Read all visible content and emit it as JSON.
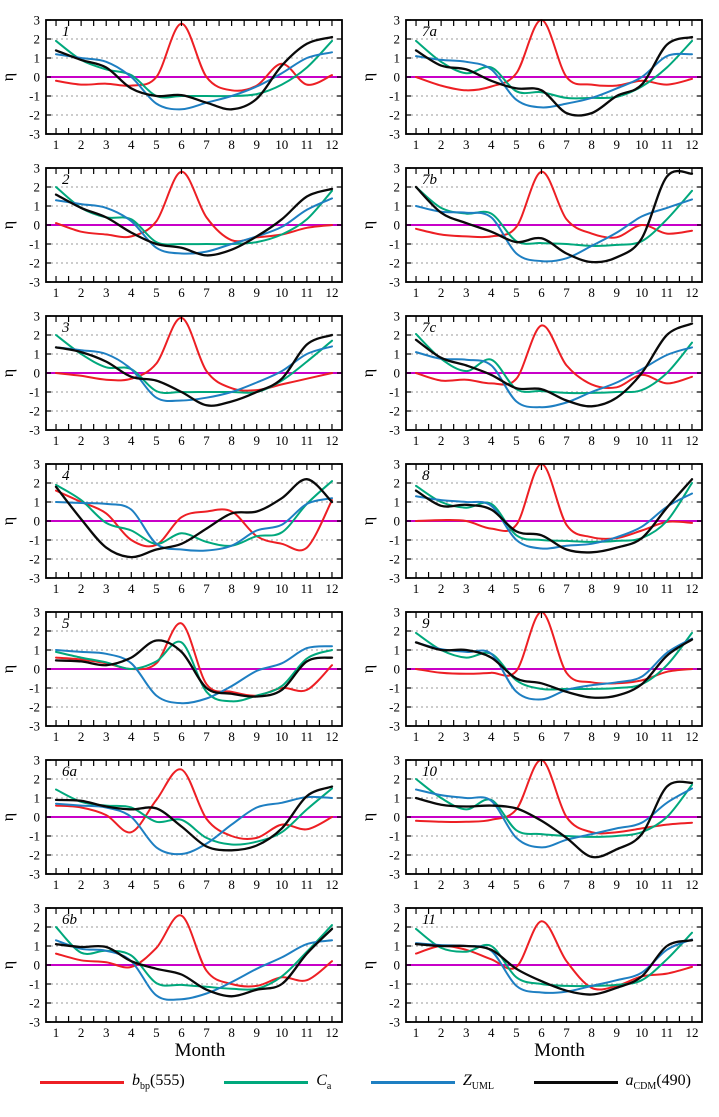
{
  "figure": {
    "ylabel": "η",
    "xlabel": "Month",
    "ylim": [
      -3,
      3
    ],
    "xlim": [
      0.6,
      12.4
    ],
    "yticks": [
      3,
      2,
      1,
      0,
      -1,
      -2,
      -3
    ],
    "xticks": [
      1,
      2,
      3,
      4,
      5,
      6,
      7,
      8,
      9,
      10,
      11,
      12
    ],
    "grid_dotted_y": [
      2,
      1,
      -1,
      -2
    ],
    "zero_line_y": 0,
    "grid_on": true,
    "colors": {
      "bbp": "#ed1f24",
      "ca": "#00a87c",
      "zuml": "#1e7fc2",
      "acdm": "#0a0a0a",
      "zero_line": "#c800c8",
      "grid": "#9a9a9a",
      "frame": "#000000"
    }
  },
  "legend": [
    {
      "key": "bbp",
      "pre": "b",
      "sub": "bp",
      "post": "(555)"
    },
    {
      "key": "ca",
      "pre": "C",
      "sub": "a",
      "post": ""
    },
    {
      "key": "zuml",
      "pre": "Z",
      "sub": "UML",
      "post": ""
    },
    {
      "key": "acdm",
      "pre": "a",
      "sub": "CDM",
      "post": "(490)"
    }
  ],
  "chart_data": {
    "type": "line",
    "x": [
      1,
      2,
      3,
      4,
      5,
      6,
      7,
      8,
      9,
      10,
      11,
      12
    ],
    "series_keys": [
      "bbp",
      "ca",
      "zuml",
      "acdm"
    ],
    "panels": [
      {
        "label": "1",
        "series": {
          "bbp": [
            -0.2,
            -0.4,
            -0.35,
            -0.45,
            0.0,
            2.8,
            0.0,
            -0.7,
            -0.45,
            0.7,
            -0.4,
            0.1
          ],
          "ca": [
            1.9,
            0.9,
            0.4,
            0.1,
            -1.0,
            -1.0,
            -1.0,
            -1.0,
            -0.9,
            -0.4,
            0.5,
            1.9
          ],
          "zuml": [
            1.2,
            1.0,
            0.8,
            0.0,
            -1.4,
            -1.7,
            -1.35,
            -1.0,
            -0.5,
            0.2,
            1.0,
            1.3
          ],
          "acdm": [
            1.4,
            0.9,
            0.5,
            -0.6,
            -1.0,
            -0.95,
            -1.35,
            -1.7,
            -1.15,
            0.6,
            1.75,
            2.1
          ]
        }
      },
      {
        "label": "7a",
        "series": {
          "bbp": [
            0.0,
            -0.45,
            -0.7,
            -0.5,
            0.2,
            3.0,
            0.0,
            -0.4,
            -0.45,
            -0.2,
            -0.4,
            -0.1
          ],
          "ca": [
            1.9,
            0.8,
            0.2,
            0.5,
            -0.75,
            -0.8,
            -1.1,
            -1.1,
            -1.05,
            -0.5,
            0.5,
            1.9
          ],
          "zuml": [
            1.1,
            0.9,
            0.8,
            0.4,
            -1.2,
            -1.6,
            -1.4,
            -1.1,
            -0.6,
            0.0,
            1.1,
            1.2
          ],
          "acdm": [
            1.4,
            0.6,
            0.4,
            -0.2,
            -0.6,
            -0.7,
            -1.9,
            -1.9,
            -1.0,
            -0.4,
            1.7,
            2.1
          ]
        }
      },
      {
        "label": "2",
        "series": {
          "bbp": [
            0.1,
            -0.35,
            -0.5,
            -0.6,
            0.2,
            2.8,
            0.4,
            -0.8,
            -0.65,
            -0.5,
            -0.15,
            0.0
          ],
          "ca": [
            2.0,
            0.9,
            0.4,
            0.3,
            -0.9,
            -1.0,
            -1.0,
            -1.0,
            -0.9,
            -0.5,
            0.3,
            1.8
          ],
          "zuml": [
            1.3,
            1.1,
            0.9,
            0.2,
            -1.2,
            -1.5,
            -1.4,
            -1.0,
            -0.6,
            -0.1,
            0.8,
            1.4
          ],
          "acdm": [
            1.6,
            0.9,
            0.4,
            -0.4,
            -1.0,
            -1.2,
            -1.6,
            -1.3,
            -0.6,
            0.3,
            1.5,
            1.9
          ]
        }
      },
      {
        "label": "7b",
        "series": {
          "bbp": [
            -0.2,
            -0.5,
            -0.6,
            -0.6,
            -0.1,
            2.8,
            0.3,
            -0.45,
            -0.65,
            0.0,
            -0.45,
            -0.3
          ],
          "ca": [
            2.0,
            0.9,
            0.6,
            0.6,
            -0.85,
            -0.95,
            -1.0,
            -1.1,
            -1.05,
            -0.85,
            0.3,
            1.8
          ],
          "zuml": [
            1.0,
            0.7,
            0.65,
            0.4,
            -1.5,
            -1.9,
            -1.75,
            -1.1,
            -0.4,
            0.45,
            0.9,
            1.35
          ],
          "acdm": [
            2.0,
            0.65,
            0.1,
            -0.35,
            -0.9,
            -0.7,
            -1.5,
            -1.95,
            -1.7,
            -0.7,
            2.55,
            2.7
          ]
        }
      },
      {
        "label": "3",
        "series": {
          "bbp": [
            0.0,
            -0.15,
            -0.35,
            -0.3,
            0.5,
            2.9,
            0.1,
            -0.8,
            -0.9,
            -0.6,
            -0.3,
            0.0
          ],
          "ca": [
            2.0,
            1.0,
            0.3,
            0.2,
            -0.95,
            -1.0,
            -1.0,
            -1.0,
            -1.0,
            -0.4,
            0.6,
            1.7
          ],
          "zuml": [
            1.35,
            1.2,
            1.0,
            0.2,
            -1.3,
            -1.45,
            -1.3,
            -1.0,
            -0.5,
            0.1,
            1.0,
            1.4
          ],
          "acdm": [
            1.35,
            1.1,
            0.6,
            -0.2,
            -0.4,
            -1.0,
            -1.7,
            -1.5,
            -1.0,
            -0.3,
            1.5,
            2.0
          ]
        }
      },
      {
        "label": "7c",
        "series": {
          "bbp": [
            0.0,
            -0.4,
            -0.35,
            -0.55,
            -0.3,
            2.5,
            0.4,
            -0.6,
            -0.75,
            -0.1,
            -0.55,
            -0.2
          ],
          "ca": [
            2.05,
            0.75,
            0.1,
            0.7,
            -0.85,
            -0.95,
            -1.05,
            -1.05,
            -1.0,
            -0.9,
            0.0,
            1.6
          ],
          "zuml": [
            1.1,
            0.75,
            0.7,
            0.4,
            -1.5,
            -1.8,
            -1.55,
            -1.0,
            -0.5,
            0.2,
            0.95,
            1.35
          ],
          "acdm": [
            1.75,
            0.8,
            0.4,
            -0.1,
            -0.8,
            -0.85,
            -1.45,
            -1.75,
            -1.3,
            0.0,
            2.0,
            2.6
          ]
        }
      },
      {
        "label": "4",
        "series": {
          "bbp": [
            1.6,
            1.0,
            0.4,
            -1.0,
            -1.25,
            0.2,
            0.5,
            0.5,
            -0.8,
            -1.2,
            -1.4,
            1.1
          ],
          "ca": [
            1.9,
            1.1,
            -0.1,
            -0.5,
            -1.2,
            -0.65,
            -1.1,
            -1.3,
            -0.8,
            -0.6,
            0.9,
            2.1
          ],
          "zuml": [
            1.0,
            0.95,
            0.9,
            0.6,
            -1.2,
            -1.5,
            -1.55,
            -1.3,
            -0.5,
            -0.2,
            0.9,
            1.2
          ],
          "acdm": [
            1.8,
            0.1,
            -1.4,
            -1.9,
            -1.5,
            -1.2,
            -0.4,
            0.4,
            0.5,
            1.2,
            2.2,
            1.0
          ]
        }
      },
      {
        "label": "8",
        "series": {
          "bbp": [
            0.0,
            0.05,
            0.0,
            -0.4,
            -0.2,
            3.0,
            -0.2,
            -0.85,
            -0.9,
            -0.5,
            -0.05,
            -0.1
          ],
          "ca": [
            1.85,
            1.0,
            0.7,
            0.9,
            -0.75,
            -1.0,
            -1.05,
            -1.1,
            -1.05,
            -0.9,
            0.0,
            2.0
          ],
          "zuml": [
            1.3,
            1.1,
            1.0,
            0.8,
            -1.0,
            -1.45,
            -1.3,
            -1.2,
            -0.85,
            -0.3,
            0.75,
            1.45
          ],
          "acdm": [
            1.6,
            0.8,
            0.85,
            0.6,
            -0.55,
            -0.75,
            -1.5,
            -1.65,
            -1.4,
            -0.9,
            0.7,
            2.2
          ]
        }
      },
      {
        "label": "5",
        "series": {
          "bbp": [
            0.6,
            0.5,
            0.3,
            0.0,
            0.3,
            2.4,
            -0.8,
            -1.2,
            -1.4,
            -1.0,
            -1.1,
            0.2
          ],
          "ca": [
            0.9,
            0.6,
            0.35,
            0.0,
            0.4,
            1.4,
            -1.2,
            -1.7,
            -1.4,
            -0.9,
            0.55,
            1.0
          ],
          "zuml": [
            1.0,
            0.9,
            0.8,
            0.3,
            -1.4,
            -1.8,
            -1.55,
            -0.9,
            -0.1,
            0.3,
            1.1,
            1.2
          ],
          "acdm": [
            0.45,
            0.4,
            0.2,
            0.6,
            1.5,
            0.9,
            -1.0,
            -1.3,
            -1.45,
            -1.1,
            0.4,
            0.6
          ]
        }
      },
      {
        "label": "9",
        "series": {
          "bbp": [
            0.0,
            -0.2,
            -0.25,
            -0.2,
            -0.1,
            3.0,
            -0.2,
            -0.7,
            -0.75,
            -0.6,
            -0.15,
            0.0
          ],
          "ca": [
            1.9,
            1.0,
            0.6,
            0.8,
            -0.6,
            -1.05,
            -1.05,
            -1.05,
            -1.0,
            -0.8,
            0.2,
            1.9
          ],
          "zuml": [
            1.4,
            1.05,
            0.9,
            0.8,
            -1.2,
            -1.6,
            -1.1,
            -0.85,
            -0.7,
            -0.4,
            0.85,
            1.6
          ],
          "acdm": [
            1.4,
            1.0,
            1.0,
            0.6,
            -0.5,
            -0.75,
            -1.2,
            -1.5,
            -1.4,
            -0.8,
            0.7,
            1.55
          ]
        }
      },
      {
        "label": "6a",
        "series": {
          "bbp": [
            0.6,
            0.5,
            0.1,
            -0.8,
            0.9,
            2.5,
            -0.1,
            -1.0,
            -1.1,
            -0.4,
            -0.65,
            0.0
          ],
          "ca": [
            1.45,
            0.8,
            0.6,
            0.5,
            -0.25,
            -0.15,
            -1.1,
            -1.45,
            -1.3,
            -0.8,
            0.4,
            1.5
          ],
          "zuml": [
            0.7,
            0.6,
            0.5,
            0.0,
            -1.6,
            -1.95,
            -1.4,
            -0.4,
            0.5,
            0.75,
            1.05,
            1.0
          ],
          "acdm": [
            0.9,
            0.85,
            0.55,
            0.4,
            0.45,
            -0.5,
            -1.55,
            -1.75,
            -1.5,
            -0.6,
            1.1,
            1.6
          ]
        }
      },
      {
        "label": "10",
        "series": {
          "bbp": [
            -0.2,
            -0.25,
            -0.25,
            -0.15,
            0.4,
            3.0,
            0.0,
            -0.8,
            -0.8,
            -0.6,
            -0.4,
            -0.3
          ],
          "ca": [
            2.0,
            1.0,
            0.4,
            0.9,
            -0.7,
            -0.9,
            -1.0,
            -1.05,
            -1.0,
            -0.8,
            0.0,
            1.7
          ],
          "zuml": [
            1.45,
            1.15,
            1.0,
            0.85,
            -1.1,
            -1.6,
            -1.2,
            -0.9,
            -0.6,
            -0.3,
            0.75,
            1.5
          ],
          "acdm": [
            1.0,
            0.65,
            0.55,
            0.6,
            0.45,
            -0.2,
            -1.1,
            -2.1,
            -1.7,
            -0.9,
            1.6,
            1.8
          ]
        }
      },
      {
        "label": "6b",
        "series": {
          "bbp": [
            0.6,
            0.25,
            0.15,
            -0.1,
            0.9,
            2.6,
            -0.3,
            -1.0,
            -1.1,
            -0.65,
            -0.8,
            0.2
          ],
          "ca": [
            2.0,
            0.65,
            0.75,
            0.5,
            -0.95,
            -1.05,
            -1.15,
            -1.25,
            -1.25,
            -0.6,
            0.7,
            2.1
          ],
          "zuml": [
            1.3,
            0.85,
            0.75,
            0.2,
            -1.6,
            -1.8,
            -1.5,
            -0.9,
            -0.2,
            0.4,
            1.1,
            1.3
          ],
          "acdm": [
            1.1,
            0.95,
            0.95,
            0.2,
            -0.2,
            -0.5,
            -1.3,
            -1.65,
            -1.3,
            -1.0,
            0.6,
            1.9
          ]
        }
      },
      {
        "label": "11",
        "series": {
          "bbp": [
            0.6,
            1.0,
            0.8,
            0.3,
            -0.1,
            2.3,
            0.2,
            -1.2,
            -1.1,
            -0.6,
            -0.45,
            -0.1
          ],
          "ca": [
            1.9,
            0.9,
            0.7,
            1.0,
            -0.65,
            -1.0,
            -1.1,
            -1.1,
            -1.05,
            -0.8,
            0.3,
            1.7
          ],
          "zuml": [
            1.15,
            1.05,
            1.0,
            0.75,
            -1.1,
            -1.45,
            -1.4,
            -1.1,
            -0.8,
            -0.4,
            0.8,
            1.35
          ],
          "acdm": [
            1.1,
            1.0,
            1.0,
            0.8,
            -0.2,
            -0.85,
            -1.35,
            -1.55,
            -1.2,
            -0.6,
            1.0,
            1.3
          ]
        }
      }
    ]
  }
}
